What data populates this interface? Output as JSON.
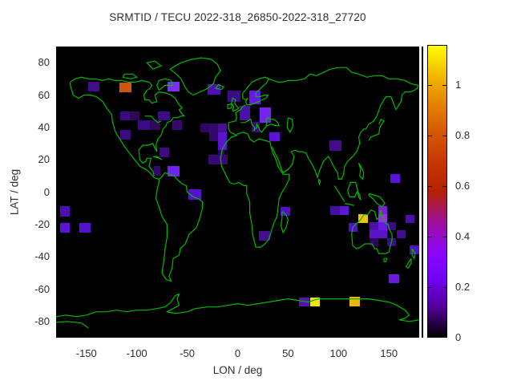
{
  "title": "SRMTID / TECU 2022-318_26850-2022-318_27720",
  "axes": {
    "x_label": "LON / deg",
    "y_label": "LAT / deg",
    "x_ticks": [
      -150,
      -100,
      -50,
      0,
      50,
      100,
      150
    ],
    "y_ticks": [
      80,
      60,
      40,
      20,
      0,
      -20,
      -40,
      -60,
      -80
    ]
  },
  "colorbar": {
    "min": 0,
    "max": 1.157,
    "tick_labels": [
      "0",
      "0.2",
      "0.4",
      "0.6",
      "0.8",
      "1"
    ],
    "tick_values": [
      0,
      0.2,
      0.4,
      0.6,
      0.8,
      1
    ],
    "palette": "gnuplot (black-violet-red-orange-yellow)"
  },
  "colors": {
    "background": "#ffffff",
    "plot_background": "#000000",
    "coastline": "#00b900",
    "text": "#2e2e2e"
  },
  "chart_data": {
    "type": "heatmap",
    "title": "SRMTID / TECU 2022-318_26850-2022-318_27720",
    "xlabel": "LON / deg",
    "ylabel": "LAT / deg",
    "x_range": [
      -180,
      180
    ],
    "y_range": [
      -90,
      90
    ],
    "value_units": "TECU",
    "cells_format": [
      "lon_west",
      "lat_north",
      "dlon",
      "dlat",
      "value",
      "color"
    ],
    "cells": [
      [
        -148.5,
        68.2,
        11.2,
        6.0,
        0.12,
        "#3f0d86"
      ],
      [
        -117.0,
        67.7,
        11.7,
        5.8,
        0.79,
        "#d2520f"
      ],
      [
        -69.9,
        68.0,
        12.5,
        6.0,
        0.3,
        "#7b2ff5"
      ],
      [
        -30.0,
        66.6,
        13.3,
        6.6,
        0.18,
        "#500fb4"
      ],
      [
        -9.6,
        62.6,
        12.7,
        7.0,
        0.11,
        "#3d0b87"
      ],
      [
        11.1,
        62.7,
        11.2,
        8.4,
        0.27,
        "#6619ea"
      ],
      [
        1.6,
        53.3,
        10.4,
        8.9,
        0.18,
        "#4c10aa"
      ],
      [
        21.5,
        52.3,
        11.2,
        9.4,
        0.3,
        "#7722f2"
      ],
      [
        13.5,
        43.4,
        8.0,
        6.5,
        0.1,
        "#38087c"
      ],
      [
        31.1,
        36.9,
        10.4,
        5.5,
        0.22,
        "#5a14d2"
      ],
      [
        -116.3,
        50.1,
        9.3,
        5.8,
        0.1,
        "#3a0a80"
      ],
      [
        -107.0,
        50.1,
        9.3,
        5.8,
        0.08,
        "#2e0758"
      ],
      [
        -79.1,
        50.1,
        11.9,
        5.8,
        0.11,
        "#3c0a85"
      ],
      [
        -99.0,
        44.4,
        12.0,
        5.8,
        0.1,
        "#3a0a80"
      ],
      [
        -87.0,
        44.4,
        10.6,
        5.8,
        0.08,
        "#2e0758"
      ],
      [
        -64.5,
        44.4,
        9.3,
        5.8,
        0.09,
        "#350870"
      ],
      [
        -116.3,
        38.6,
        10.1,
        6.1,
        0.1,
        "#3a0a80"
      ],
      [
        -36.7,
        42.4,
        8.7,
        5.5,
        0.06,
        "#2d0660"
      ],
      [
        -28.0,
        42.4,
        8.8,
        5.5,
        0.08,
        "#33076b"
      ],
      [
        -19.2,
        42.4,
        8.8,
        5.5,
        0.15,
        "#451091"
      ],
      [
        -28.0,
        36.9,
        8.8,
        5.4,
        0.08,
        "#31076a"
      ],
      [
        -19.2,
        36.9,
        8.8,
        5.4,
        0.22,
        "#5a14cc"
      ],
      [
        -19.2,
        31.5,
        8.8,
        5.5,
        0.22,
        "#5a14cc"
      ],
      [
        -19.2,
        26.0,
        6.0,
        3.3,
        0.08,
        "#2f0766"
      ],
      [
        -28.7,
        23.2,
        9.2,
        6.0,
        0.1,
        "#380975"
      ],
      [
        -19.5,
        23.2,
        9.1,
        6.0,
        0.1,
        "#380975"
      ],
      [
        -77.8,
        27.5,
        10.1,
        6.1,
        0.11,
        "#3c0a85"
      ],
      [
        -83.0,
        15.9,
        6.2,
        5.8,
        0.09,
        "#33086e"
      ],
      [
        -69.3,
        15.9,
        12.0,
        6.2,
        0.28,
        "#6e23ee"
      ],
      [
        -48.8,
        1.7,
        12.7,
        6.6,
        0.2,
        "#5512cc"
      ],
      [
        -175.8,
        -8.8,
        9.6,
        6.3,
        0.17,
        "#4a0fb4"
      ],
      [
        -176.2,
        -19.2,
        10.0,
        5.8,
        0.22,
        "#5a14d8"
      ],
      [
        -156.9,
        -19.2,
        11.2,
        5.8,
        0.2,
        "#5512cc"
      ],
      [
        90.8,
        32.0,
        11.9,
        6.6,
        0.12,
        "#420a8c"
      ],
      [
        151.1,
        11.3,
        10.0,
        5.8,
        0.22,
        "#5c12dc"
      ],
      [
        91.6,
        -8.8,
        9.5,
        5.5,
        0.15,
        "#43109e"
      ],
      [
        101.1,
        -8.8,
        9.1,
        5.5,
        0.22,
        "#5a18d4"
      ],
      [
        119.2,
        -13.8,
        10.1,
        5.4,
        1.02,
        "#eec40e"
      ],
      [
        110.2,
        -19.2,
        9.0,
        5.4,
        0.19,
        "#5010c8"
      ],
      [
        139.4,
        -8.7,
        9.0,
        5.0,
        0.3,
        "#7d1fd0"
      ],
      [
        139.4,
        -13.7,
        9.0,
        5.0,
        0.36,
        "#9b30e8"
      ],
      [
        130.3,
        -18.7,
        9.1,
        5.0,
        0.17,
        "#4a10a8"
      ],
      [
        139.4,
        -18.7,
        9.0,
        5.0,
        0.26,
        "#6618e0"
      ],
      [
        148.4,
        -18.7,
        9.0,
        5.0,
        0.1,
        "#3a0a88"
      ],
      [
        130.3,
        -23.7,
        9.1,
        5.0,
        0.21,
        "#5a14c8"
      ],
      [
        139.4,
        -23.7,
        9.0,
        5.0,
        0.21,
        "#5a14c8"
      ],
      [
        157.4,
        -23.7,
        9.0,
        5.0,
        0.13,
        "#400c96"
      ],
      [
        130.3,
        -28.7,
        9.1,
        5.0,
        0.06,
        "#2a0660"
      ],
      [
        148.4,
        -28.7,
        9.0,
        5.0,
        0.11,
        "#3c0a8e"
      ],
      [
        166.4,
        -14.3,
        8.8,
        4.9,
        0.16,
        "#4812a8"
      ],
      [
        170.4,
        -33.0,
        9.6,
        5.5,
        0.19,
        "#5013c0"
      ],
      [
        150.0,
        -50.6,
        9.9,
        5.8,
        0.25,
        "#6a1ae0"
      ],
      [
        61.0,
        -65.1,
        10.5,
        5.5,
        0.2,
        "#5a10b0"
      ],
      [
        71.5,
        -65.1,
        9.5,
        5.5,
        1.1,
        "#f0e40c"
      ],
      [
        110.7,
        -64.7,
        10.6,
        5.8,
        0.98,
        "#eab808"
      ],
      [
        42.4,
        -9.0,
        9.3,
        5.4,
        0.2,
        "#5212c4"
      ],
      [
        21.2,
        -24.2,
        11.2,
        5.8,
        0.14,
        "#41108f"
      ]
    ]
  }
}
